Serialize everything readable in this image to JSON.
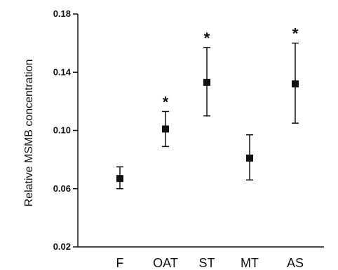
{
  "chart_data": {
    "type": "scatter",
    "title": "",
    "xlabel": "",
    "ylabel": "Relative MSMB concentration",
    "ylim": [
      0.02,
      0.18
    ],
    "yticks": [
      "0.02",
      "0.06",
      "0.10",
      "0.14",
      "0.18"
    ],
    "yticks_values": [
      0.02,
      0.06,
      0.1,
      0.14,
      0.18
    ],
    "categories": [
      "F",
      "OAT",
      "ST",
      "MT",
      "AS"
    ],
    "series": [
      {
        "values": [
          0.067,
          0.101,
          0.133,
          0.081,
          0.132
        ],
        "error_low": [
          0.06,
          0.089,
          0.11,
          0.066,
          0.105
        ],
        "error_high": [
          0.075,
          0.113,
          0.157,
          0.097,
          0.16
        ],
        "significance": [
          "",
          "*",
          "*",
          "",
          "*"
        ]
      }
    ],
    "grid": false,
    "marker": "square",
    "color": "#111111"
  }
}
